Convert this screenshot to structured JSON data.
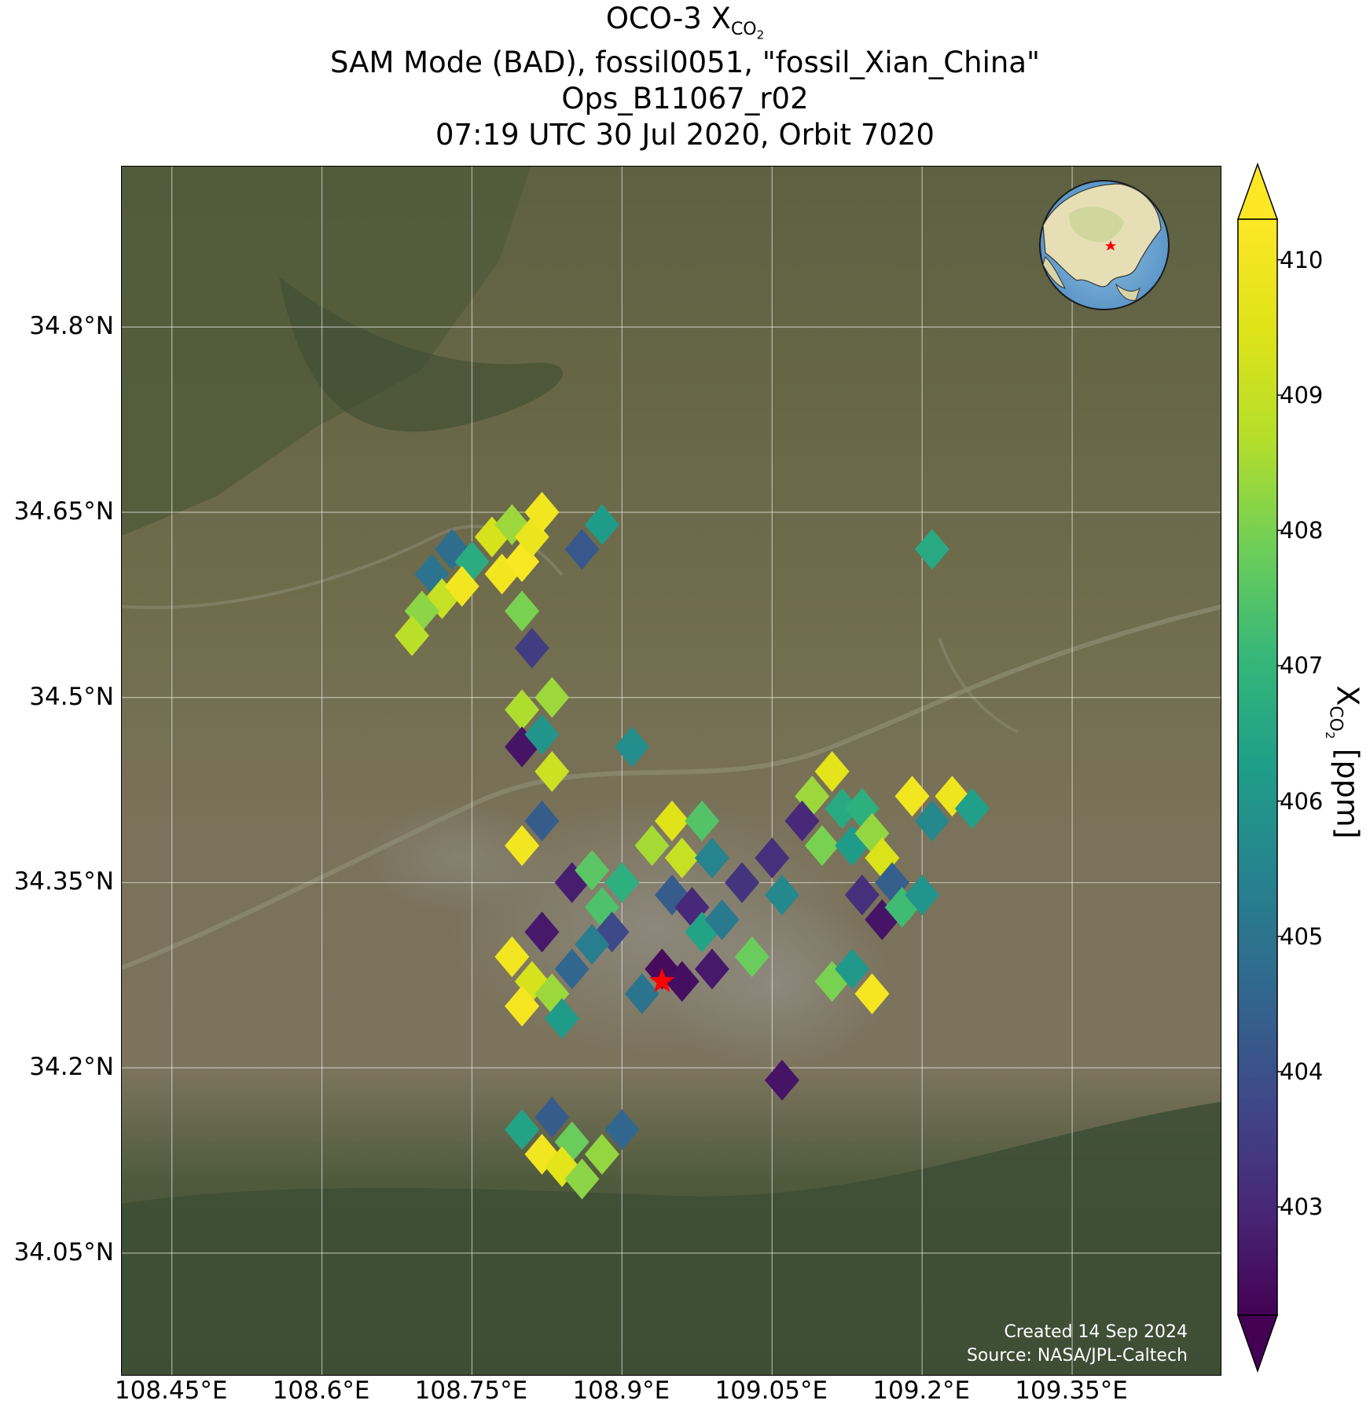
{
  "title": {
    "line1_main": "OCO-3 X",
    "line1_sub": "CO",
    "line1_subsub": "2",
    "line2": "SAM Mode (BAD), fossil0051, \"fossil_Xian_China\"",
    "line3": "Ops_B11067_r02",
    "line4": "07:19 UTC 30 Jul 2020, Orbit 7020"
  },
  "axes": {
    "lat_ticks": [
      "34.8°N",
      "34.65°N",
      "34.5°N",
      "34.35°N",
      "34.2°N",
      "34.05°N"
    ],
    "lon_ticks": [
      "108.45°E",
      "108.6°E",
      "108.75°E",
      "108.9°E",
      "109.05°E",
      "109.2°E",
      "109.35°E"
    ]
  },
  "colorbar": {
    "label_main": "X",
    "label_sub": "CO",
    "label_subsub": "2",
    "label_unit": " [ppm]",
    "ticks": [
      "410",
      "409",
      "408",
      "407",
      "406",
      "405",
      "404",
      "403"
    ],
    "range": [
      402.2,
      410.3
    ],
    "extend": "both",
    "colormap": "viridis"
  },
  "credits": {
    "created": "Created 14 Sep 2024",
    "source": "Source: NASA/JPL-Caltech"
  },
  "inset": {
    "description": "globe-inset",
    "marker": "red star over Xi'an"
  },
  "chart_data": {
    "type": "scatter",
    "xlim": [
      108.4,
      109.5
    ],
    "ylim": [
      33.95,
      34.93
    ],
    "xlabel": "",
    "ylabel": "",
    "grid": true,
    "target": {
      "lon": 108.94,
      "lat": 34.27,
      "marker": "red star"
    },
    "soundings": [
      {
        "lon": 108.73,
        "lat": 34.62,
        "v": 404.8
      },
      {
        "lon": 108.71,
        "lat": 34.6,
        "v": 405.0
      },
      {
        "lon": 108.75,
        "lat": 34.61,
        "v": 406.7
      },
      {
        "lon": 108.72,
        "lat": 34.58,
        "v": 409.0
      },
      {
        "lon": 108.7,
        "lat": 34.57,
        "v": 408.2
      },
      {
        "lon": 108.74,
        "lat": 34.59,
        "v": 410.0
      },
      {
        "lon": 108.69,
        "lat": 34.55,
        "v": 408.8
      },
      {
        "lon": 108.77,
        "lat": 34.63,
        "v": 409.3
      },
      {
        "lon": 108.79,
        "lat": 34.64,
        "v": 408.4
      },
      {
        "lon": 108.78,
        "lat": 34.6,
        "v": 410.0
      },
      {
        "lon": 108.8,
        "lat": 34.61,
        "v": 410.2
      },
      {
        "lon": 108.81,
        "lat": 34.63,
        "v": 409.8
      },
      {
        "lon": 108.82,
        "lat": 34.65,
        "v": 410.0
      },
      {
        "lon": 108.8,
        "lat": 34.57,
        "v": 408.0
      },
      {
        "lon": 108.81,
        "lat": 34.54,
        "v": 403.5
      },
      {
        "lon": 108.86,
        "lat": 34.62,
        "v": 404.2
      },
      {
        "lon": 108.88,
        "lat": 34.64,
        "v": 406.2
      },
      {
        "lon": 109.21,
        "lat": 34.62,
        "v": 406.6
      },
      {
        "lon": 108.8,
        "lat": 34.49,
        "v": 408.6
      },
      {
        "lon": 108.83,
        "lat": 34.5,
        "v": 408.4
      },
      {
        "lon": 108.8,
        "lat": 34.46,
        "v": 402.6
      },
      {
        "lon": 108.82,
        "lat": 34.47,
        "v": 406.0
      },
      {
        "lon": 108.83,
        "lat": 34.44,
        "v": 409.1
      },
      {
        "lon": 108.91,
        "lat": 34.46,
        "v": 405.8
      },
      {
        "lon": 108.82,
        "lat": 34.4,
        "v": 404.3
      },
      {
        "lon": 108.8,
        "lat": 34.38,
        "v": 410.0
      },
      {
        "lon": 108.85,
        "lat": 34.35,
        "v": 402.8
      },
      {
        "lon": 108.87,
        "lat": 34.36,
        "v": 407.6
      },
      {
        "lon": 108.88,
        "lat": 34.33,
        "v": 407.4
      },
      {
        "lon": 108.89,
        "lat": 34.31,
        "v": 403.8
      },
      {
        "lon": 108.9,
        "lat": 34.35,
        "v": 406.8
      },
      {
        "lon": 108.93,
        "lat": 34.38,
        "v": 408.5
      },
      {
        "lon": 108.95,
        "lat": 34.4,
        "v": 409.5
      },
      {
        "lon": 108.96,
        "lat": 34.37,
        "v": 409.0
      },
      {
        "lon": 108.98,
        "lat": 34.4,
        "v": 407.5
      },
      {
        "lon": 108.99,
        "lat": 34.37,
        "v": 405.5
      },
      {
        "lon": 108.95,
        "lat": 34.34,
        "v": 404.3
      },
      {
        "lon": 108.97,
        "lat": 34.33,
        "v": 403.0
      },
      {
        "lon": 108.98,
        "lat": 34.31,
        "v": 406.4
      },
      {
        "lon": 109.0,
        "lat": 34.32,
        "v": 405.2
      },
      {
        "lon": 109.02,
        "lat": 34.35,
        "v": 403.3
      },
      {
        "lon": 109.03,
        "lat": 34.29,
        "v": 407.8
      },
      {
        "lon": 109.05,
        "lat": 34.37,
        "v": 403.2
      },
      {
        "lon": 109.06,
        "lat": 34.34,
        "v": 405.6
      },
      {
        "lon": 108.94,
        "lat": 34.28,
        "v": 402.4
      },
      {
        "lon": 108.96,
        "lat": 34.27,
        "v": 402.5
      },
      {
        "lon": 108.99,
        "lat": 34.28,
        "v": 402.7
      },
      {
        "lon": 108.92,
        "lat": 34.26,
        "v": 405.0
      },
      {
        "lon": 109.09,
        "lat": 34.42,
        "v": 408.4
      },
      {
        "lon": 109.11,
        "lat": 34.44,
        "v": 409.6
      },
      {
        "lon": 109.08,
        "lat": 34.4,
        "v": 403.0
      },
      {
        "lon": 109.12,
        "lat": 34.41,
        "v": 406.6
      },
      {
        "lon": 109.14,
        "lat": 34.41,
        "v": 406.8
      },
      {
        "lon": 109.1,
        "lat": 34.38,
        "v": 408.0
      },
      {
        "lon": 109.13,
        "lat": 34.38,
        "v": 406.2
      },
      {
        "lon": 109.15,
        "lat": 34.39,
        "v": 408.3
      },
      {
        "lon": 109.16,
        "lat": 34.37,
        "v": 409.4
      },
      {
        "lon": 109.19,
        "lat": 34.42,
        "v": 410.0
      },
      {
        "lon": 109.21,
        "lat": 34.4,
        "v": 405.6
      },
      {
        "lon": 109.23,
        "lat": 34.42,
        "v": 409.9
      },
      {
        "lon": 109.25,
        "lat": 34.41,
        "v": 406.3
      },
      {
        "lon": 109.14,
        "lat": 34.34,
        "v": 403.2
      },
      {
        "lon": 109.16,
        "lat": 34.32,
        "v": 402.6
      },
      {
        "lon": 109.17,
        "lat": 34.35,
        "v": 404.4
      },
      {
        "lon": 109.18,
        "lat": 34.33,
        "v": 407.2
      },
      {
        "lon": 109.2,
        "lat": 34.34,
        "v": 406.0
      },
      {
        "lon": 109.11,
        "lat": 34.27,
        "v": 408.0
      },
      {
        "lon": 109.13,
        "lat": 34.28,
        "v": 406.1
      },
      {
        "lon": 109.15,
        "lat": 34.26,
        "v": 410.1
      },
      {
        "lon": 109.06,
        "lat": 34.19,
        "v": 402.6
      },
      {
        "lon": 108.79,
        "lat": 34.29,
        "v": 410.0
      },
      {
        "lon": 108.81,
        "lat": 34.27,
        "v": 409.3
      },
      {
        "lon": 108.8,
        "lat": 34.25,
        "v": 410.1
      },
      {
        "lon": 108.82,
        "lat": 34.31,
        "v": 402.7
      },
      {
        "lon": 108.83,
        "lat": 34.26,
        "v": 408.4
      },
      {
        "lon": 108.84,
        "lat": 34.24,
        "v": 406.2
      },
      {
        "lon": 108.85,
        "lat": 34.28,
        "v": 404.6
      },
      {
        "lon": 108.87,
        "lat": 34.3,
        "v": 405.3
      },
      {
        "lon": 108.8,
        "lat": 34.15,
        "v": 406.4
      },
      {
        "lon": 108.83,
        "lat": 34.16,
        "v": 404.3
      },
      {
        "lon": 108.82,
        "lat": 34.13,
        "v": 410.0
      },
      {
        "lon": 108.85,
        "lat": 34.14,
        "v": 407.8
      },
      {
        "lon": 108.84,
        "lat": 34.12,
        "v": 409.6
      },
      {
        "lon": 108.86,
        "lat": 34.11,
        "v": 408.2
      },
      {
        "lon": 108.88,
        "lat": 34.13,
        "v": 408.3
      },
      {
        "lon": 108.9,
        "lat": 34.15,
        "v": 404.6
      }
    ]
  }
}
